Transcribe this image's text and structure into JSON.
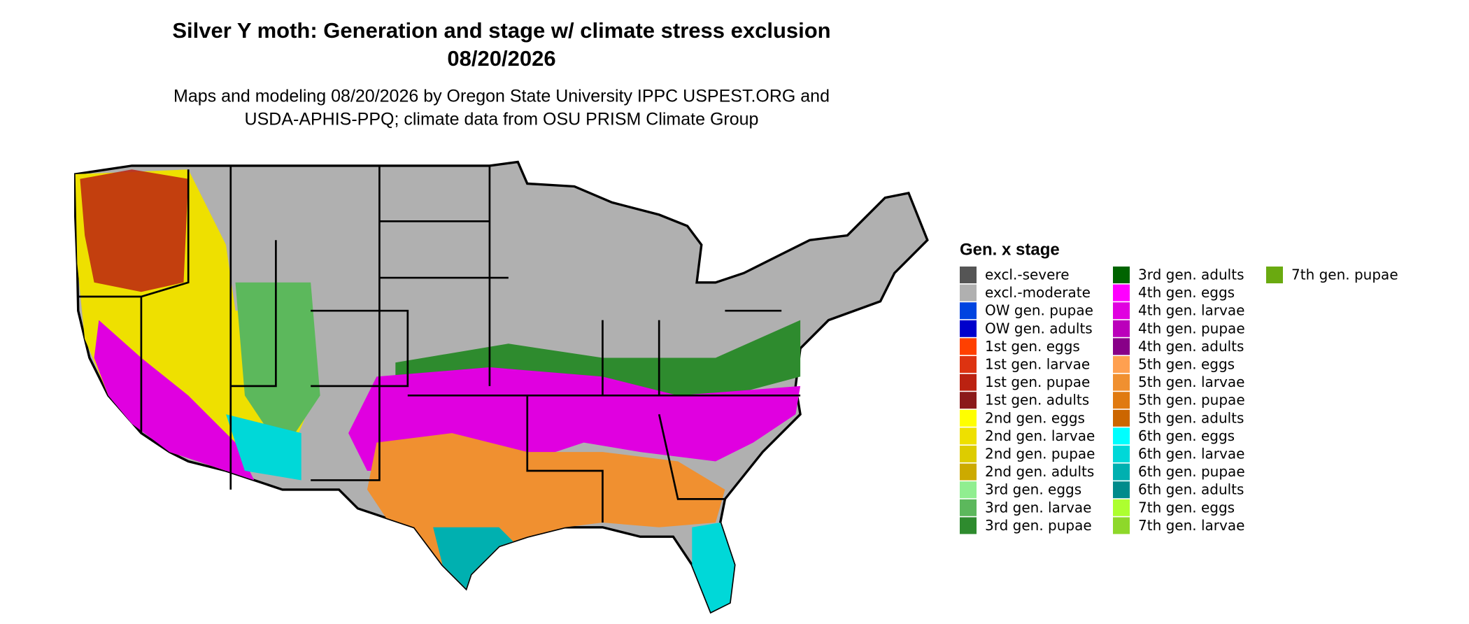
{
  "header": {
    "title": "Silver Y moth: Generation and stage w/ climate stress exclusion",
    "date": "08/20/2026",
    "subtitle_lines": [
      "Maps and modeling 08/20/2026 by Oregon State University IPPC USPEST.ORG and",
      "USDA-APHIS-PPQ; climate data from OSU PRISM Climate Group"
    ]
  },
  "legend": {
    "title": "Gen. x stage",
    "items": [
      {
        "label": "excl.-severe",
        "color": "#555555"
      },
      {
        "label": "excl.-moderate",
        "color": "#b0b0b0"
      },
      {
        "label": "OW gen. pupae",
        "color": "#0044e0"
      },
      {
        "label": "OW gen. adults",
        "color": "#0000cc"
      },
      {
        "label": "1st gen. eggs",
        "color": "#ff4000"
      },
      {
        "label": "1st gen. larvae",
        "color": "#dd3311"
      },
      {
        "label": "1st gen. pupae",
        "color": "#bb2211"
      },
      {
        "label": "1st gen. adults",
        "color": "#8b1a1a"
      },
      {
        "label": "2nd gen. eggs",
        "color": "#ffff00"
      },
      {
        "label": "2nd gen. larvae",
        "color": "#eee000"
      },
      {
        "label": "2nd gen. pupae",
        "color": "#ddcc00"
      },
      {
        "label": "2nd gen. adults",
        "color": "#ccaa00"
      },
      {
        "label": "3rd gen. eggs",
        "color": "#90ee90"
      },
      {
        "label": "3rd gen. larvae",
        "color": "#5cb85c"
      },
      {
        "label": "3rd gen. pupae",
        "color": "#2e8b2e"
      },
      {
        "label": "3rd gen. adults",
        "color": "#006400"
      },
      {
        "label": "4th gen. eggs",
        "color": "#ff00ff"
      },
      {
        "label": "4th gen. larvae",
        "color": "#e000e0"
      },
      {
        "label": "4th gen. pupae",
        "color": "#bb00bb"
      },
      {
        "label": "4th gen. adults",
        "color": "#880088"
      },
      {
        "label": "5th gen. eggs",
        "color": "#ffa050"
      },
      {
        "label": "5th gen. larvae",
        "color": "#f09030"
      },
      {
        "label": "5th gen. pupae",
        "color": "#e07a10"
      },
      {
        "label": "5th gen. adults",
        "color": "#cc6600"
      },
      {
        "label": "6th gen. eggs",
        "color": "#00ffff"
      },
      {
        "label": "6th gen. larvae",
        "color": "#00d8d8"
      },
      {
        "label": "6th gen. pupae",
        "color": "#00b0b0"
      },
      {
        "label": "6th gen. adults",
        "color": "#008b8b"
      },
      {
        "label": "7th gen. eggs",
        "color": "#adff2f"
      },
      {
        "label": "7th gen. larvae",
        "color": "#8ed82a"
      },
      {
        "label": "7th gen. pupae",
        "color": "#6aaa10"
      }
    ]
  }
}
